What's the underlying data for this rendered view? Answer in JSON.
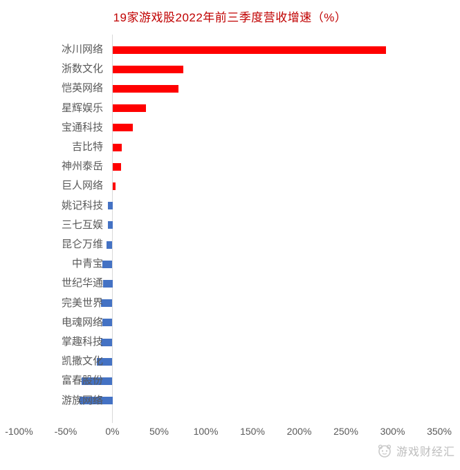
{
  "chart_data": {
    "type": "bar",
    "orientation": "horizontal",
    "title": "19家游戏股2022年前三季度营收增速（%）",
    "unit": "%",
    "categories": [
      "冰川网络",
      "浙数文化",
      "恺英网络",
      "星辉娱乐",
      "宝通科技",
      "吉比特",
      "神州泰岳",
      "巨人网络",
      "姚记科技",
      "三七互娱",
      "昆仑万维",
      "中青宝",
      "世纪华通",
      "完美世界",
      "电魂网络",
      "掌趣科技",
      "凯撒文化",
      "富春股份",
      "游族网络"
    ],
    "values": [
      293,
      76,
      71,
      36,
      22,
      10,
      9,
      3,
      -5,
      -5,
      -6,
      -11,
      -10,
      -12,
      -11,
      -12,
      -17,
      -33,
      -35
    ],
    "xlim": [
      -100,
      350
    ],
    "x_ticks": [
      {
        "label": "-100%",
        "value": -100
      },
      {
        "label": "-50%",
        "value": -50
      },
      {
        "label": "0%",
        "value": 0
      },
      {
        "label": "50%",
        "value": 50
      },
      {
        "label": "100%",
        "value": 100
      },
      {
        "label": "150%",
        "value": 150
      },
      {
        "label": "200%",
        "value": 200
      },
      {
        "label": "250%",
        "value": 250
      },
      {
        "label": "300%",
        "value": 300
      },
      {
        "label": "350%",
        "value": 350
      }
    ],
    "grid": false,
    "legend": false,
    "colors": {
      "positive_bar": "#FF0000",
      "negative_bar": "#4472C4",
      "title": "#C00000",
      "axis_labels": "#595959",
      "axis_line": "#D9D9D9"
    }
  },
  "watermark": {
    "text": "游戏财经汇",
    "icon": "mascot-logo-icon",
    "color": "#BDBDBD"
  }
}
